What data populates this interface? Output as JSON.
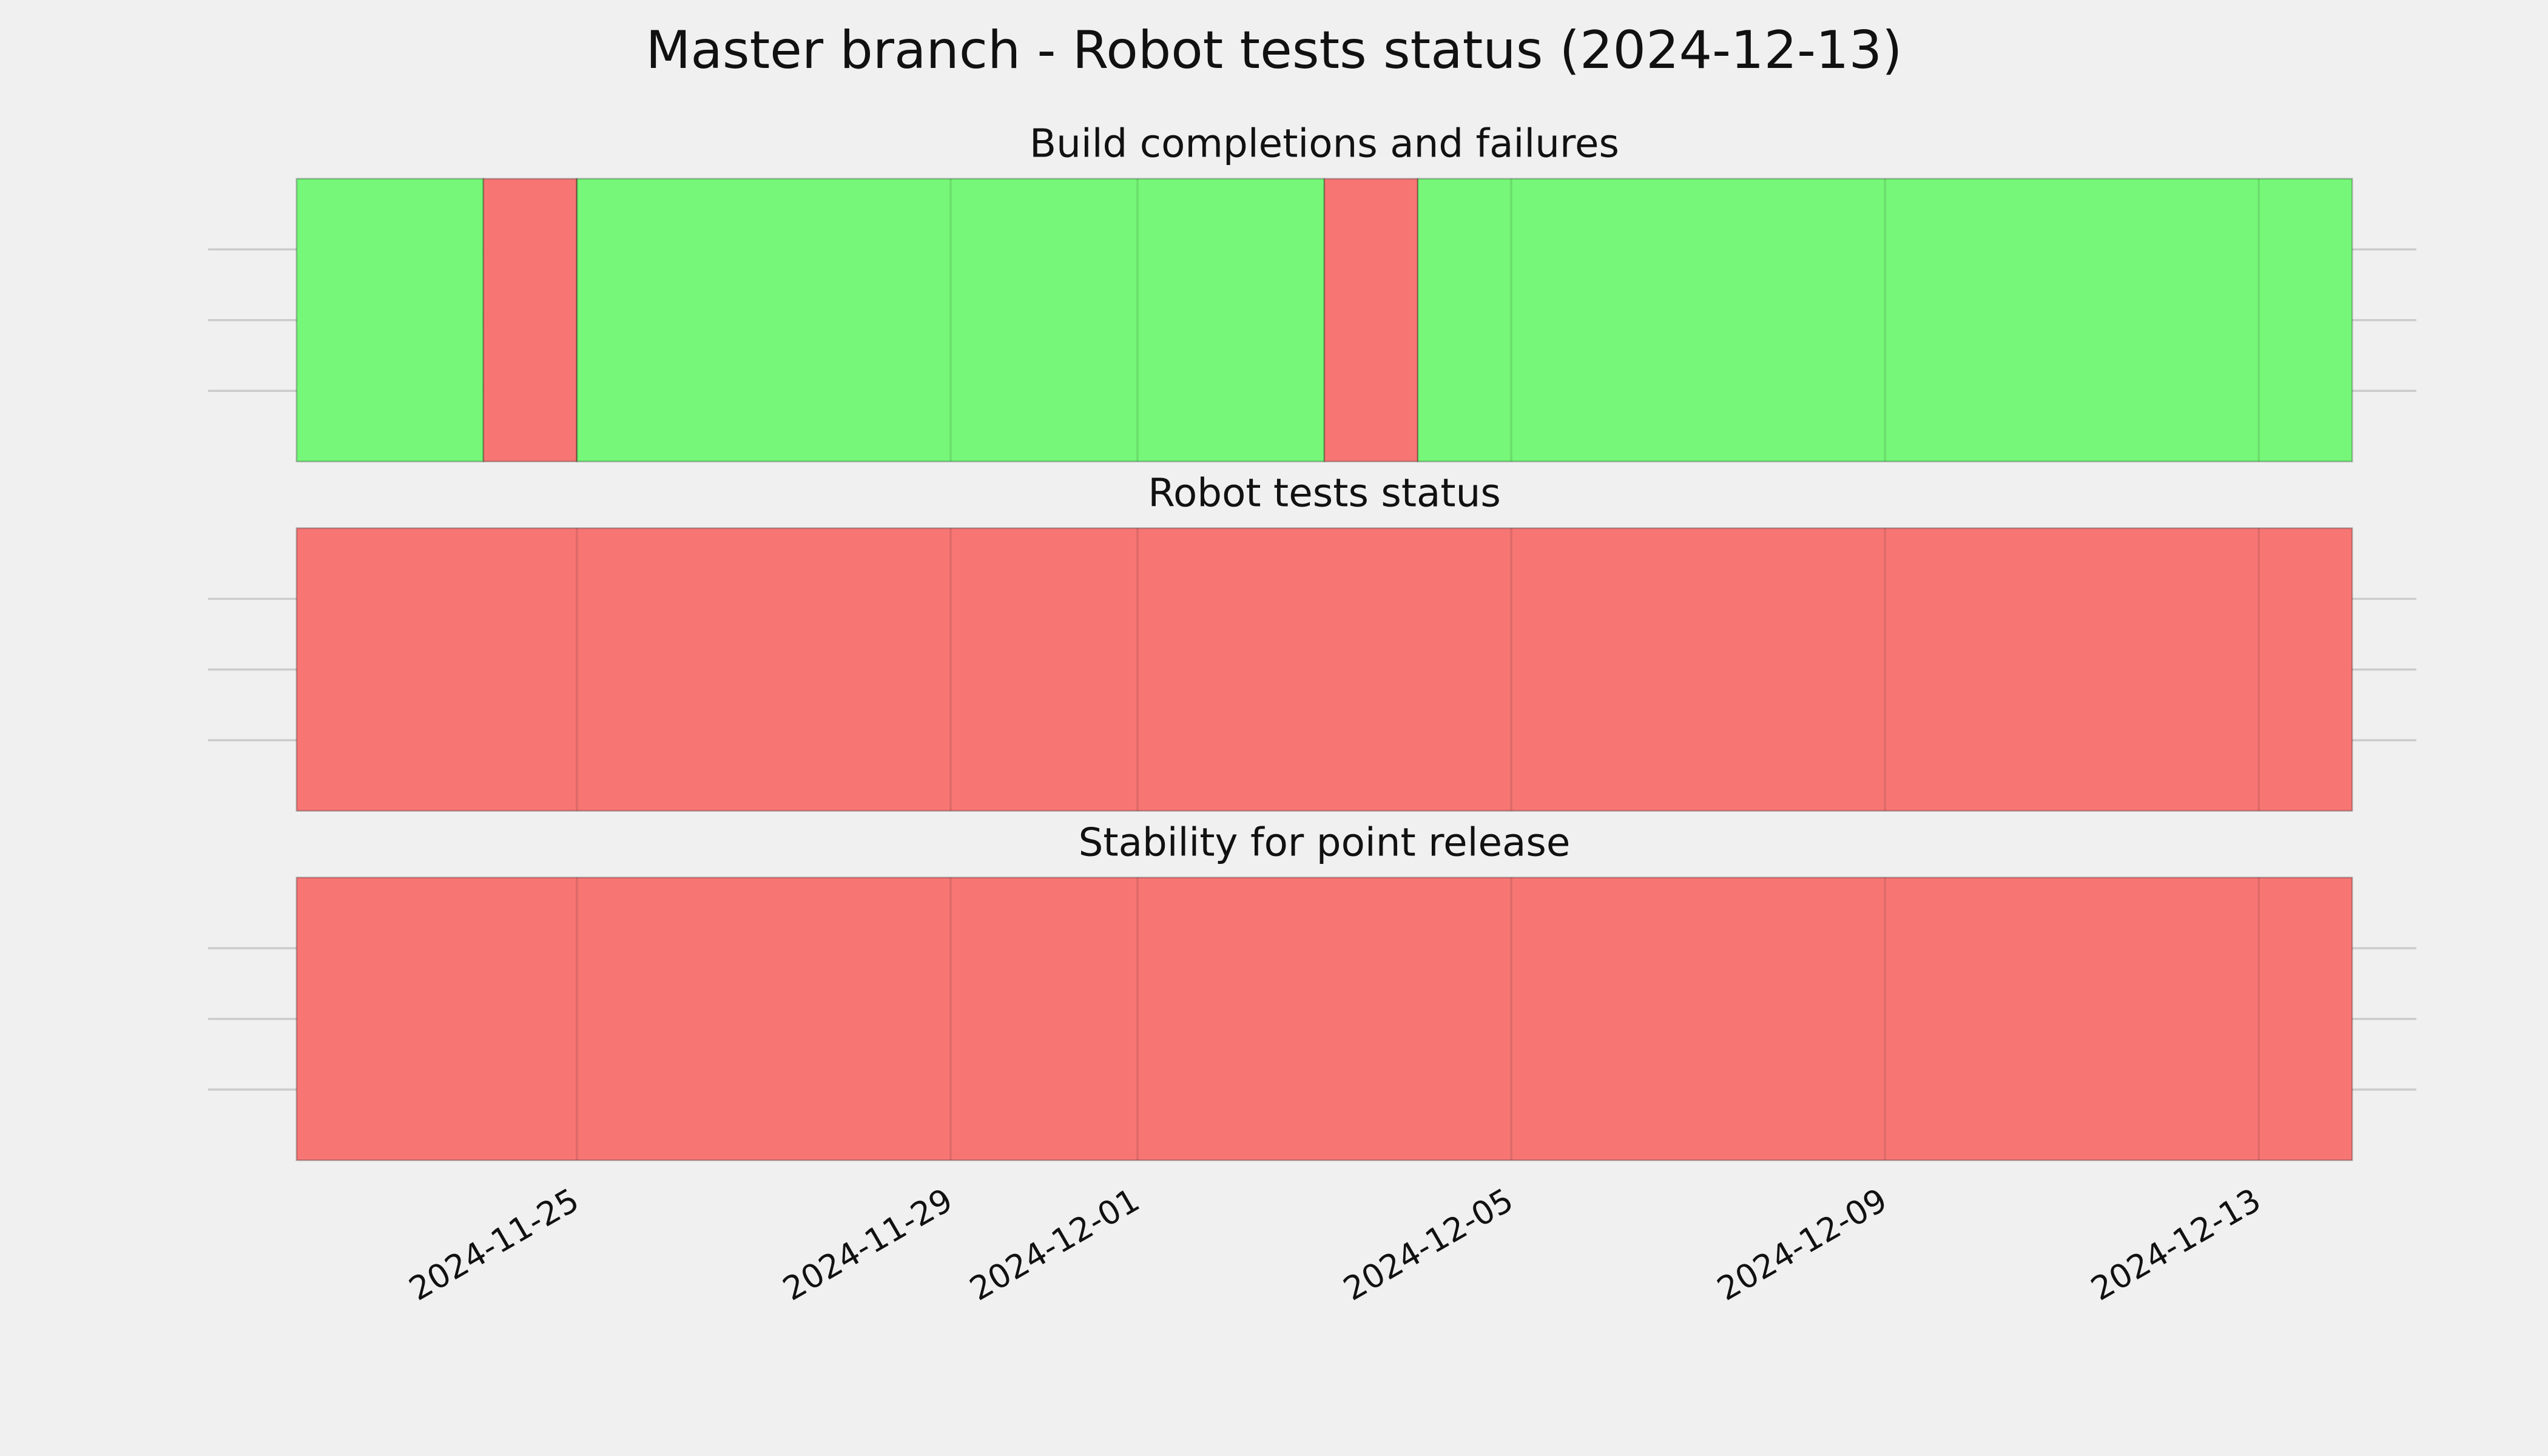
{
  "title": "Master branch - Robot tests status (2024-12-13)",
  "chart_data": [
    {
      "type": "timeline",
      "title": "Build completions and failures",
      "xlim": [
        "2024-11-22",
        "2024-12-14"
      ],
      "xticks": [
        "2024-11-25",
        "2024-11-29",
        "2024-12-01",
        "2024-12-05",
        "2024-12-09",
        "2024-12-13"
      ],
      "ylim": [
        0,
        1
      ],
      "yticks": [
        0.25,
        0.5,
        0.75
      ],
      "grid": true,
      "segments": [
        {
          "start": "2024-11-22",
          "end": "2024-11-24",
          "color": "#76f779"
        },
        {
          "start": "2024-11-24",
          "end": "2024-11-25",
          "color": "#f77674"
        },
        {
          "start": "2024-11-25",
          "end": "2024-12-03",
          "color": "#76f779"
        },
        {
          "start": "2024-12-03",
          "end": "2024-12-04",
          "color": "#f77674"
        },
        {
          "start": "2024-12-04",
          "end": "2024-12-14",
          "color": "#76f779"
        }
      ]
    },
    {
      "type": "timeline",
      "title": "Robot tests status",
      "xlim": [
        "2024-11-22",
        "2024-12-14"
      ],
      "xticks": [
        "2024-11-25",
        "2024-11-29",
        "2024-12-01",
        "2024-12-05",
        "2024-12-09",
        "2024-12-13"
      ],
      "ylim": [
        0,
        1
      ],
      "yticks": [
        0.25,
        0.5,
        0.75
      ],
      "grid": true,
      "segments": [
        {
          "start": "2024-11-22",
          "end": "2024-12-14",
          "color": "#f77674"
        }
      ]
    },
    {
      "type": "timeline",
      "title": "Stability for point release",
      "xlim": [
        "2024-11-22",
        "2024-12-14"
      ],
      "xticks": [
        "2024-11-25",
        "2024-11-29",
        "2024-12-01",
        "2024-12-05",
        "2024-12-09",
        "2024-12-13"
      ],
      "ylim": [
        0,
        1
      ],
      "yticks": [
        0.25,
        0.5,
        0.75
      ],
      "grid": true,
      "segments": [
        {
          "start": "2024-11-22",
          "end": "2024-12-14",
          "color": "#f77674"
        }
      ]
    }
  ]
}
